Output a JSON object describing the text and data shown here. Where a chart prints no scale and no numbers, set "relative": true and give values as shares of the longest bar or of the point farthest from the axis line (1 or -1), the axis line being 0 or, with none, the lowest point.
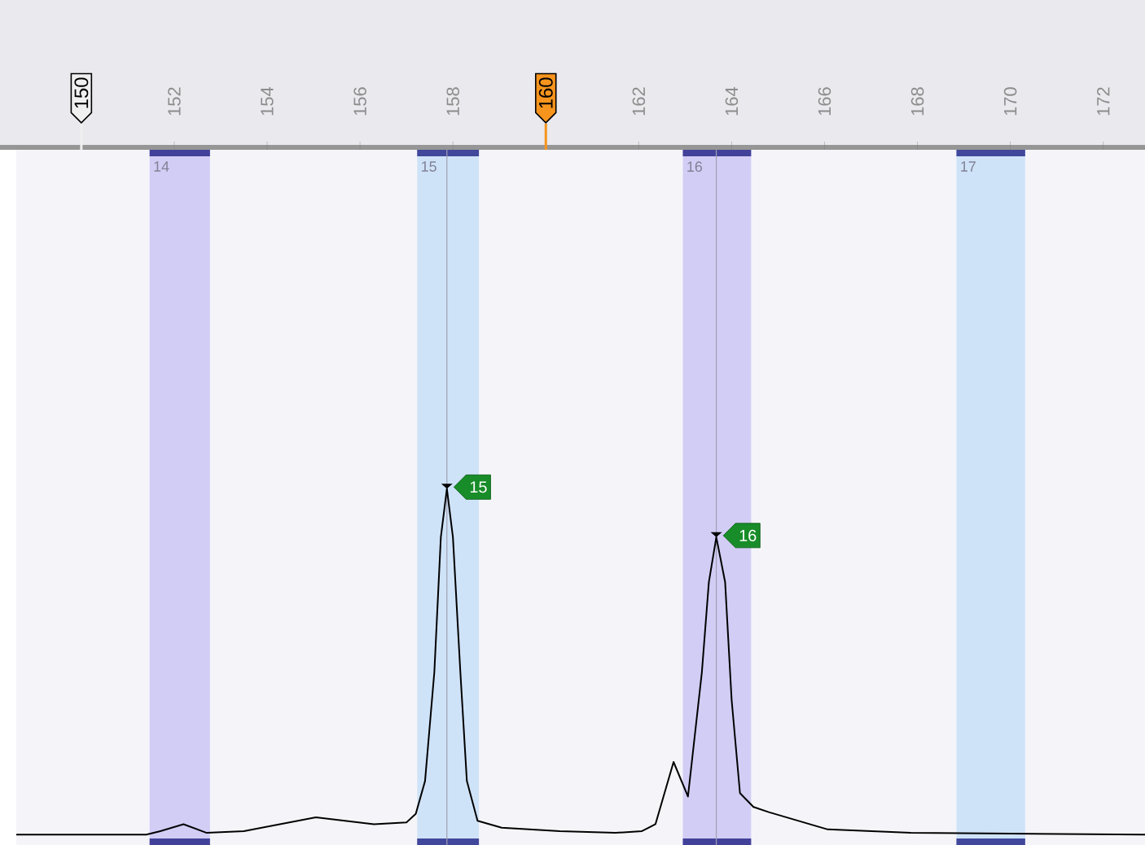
{
  "chart_data": {
    "type": "line",
    "relative": true,
    "tick_labels": "x",
    "marker": "none",
    "line_style": "solid",
    "xlim": [
      148.6,
      172.9
    ],
    "xticks": [
      152,
      154,
      156,
      158,
      {
        "value": 160,
        "label": null
      },
      162,
      164,
      166,
      168,
      170,
      172
    ],
    "series": [
      {
        "color": "#000000",
        "x": [
          148.6,
          151.4,
          151.7,
          152.2,
          152.7,
          153.5,
          155.05,
          156.3,
          157.0,
          157.2,
          157.4,
          157.6,
          157.74,
          157.87,
          158.0,
          158.16,
          158.3,
          158.53,
          159.05,
          160.3,
          161.5,
          162.07,
          162.36,
          162.75,
          163.06,
          163.36,
          163.51,
          163.67,
          163.86,
          164.0,
          164.18,
          164.47,
          164.8,
          166.07,
          167.86,
          172.9
        ],
        "values": [
          0,
          0,
          0.01,
          0.03,
          0.005,
          0.01,
          0.05,
          0.03,
          0.035,
          0.06,
          0.155,
          0.47,
          0.86,
          1,
          0.86,
          0.47,
          0.155,
          0.04,
          0.02,
          0.01,
          0.005,
          0.01,
          0.03,
          0.21,
          0.11,
          0.47,
          0.73,
          0.86,
          0.73,
          0.39,
          0.12,
          0.08,
          0.065,
          0.015,
          0.005,
          0
        ]
      }
    ],
    "bands": [
      {
        "axis": "x",
        "from": 151.47,
        "to": 152.77,
        "label": "14",
        "color": "#d2cdf5"
      },
      {
        "axis": "x",
        "from": 157.23,
        "to": 158.56,
        "label": "15",
        "color": "#cfe3f8"
      },
      {
        "axis": "x",
        "from": 162.95,
        "to": 164.42,
        "label": "16",
        "color": "#d2cdf5"
      },
      {
        "axis": "x",
        "from": 168.84,
        "to": 170.32,
        "label": "17",
        "color": "#cfe3f8"
      }
    ],
    "ref_lines": [
      {
        "axis": "x",
        "value": 150,
        "label": "150",
        "color": "#f0f0f0"
      },
      {
        "axis": "x",
        "value": 160,
        "label": "160",
        "color": "#f7941d"
      },
      {
        "axis": "x",
        "value": 157.87,
        "color": "#a0a0b4"
      },
      {
        "axis": "x",
        "value": 163.67,
        "color": "#a0a0b4"
      }
    ],
    "annotations": [
      {
        "text": "15",
        "x": 157.87,
        "y": 1
      },
      {
        "text": "16",
        "x": 163.67,
        "y": 0.86
      }
    ]
  }
}
